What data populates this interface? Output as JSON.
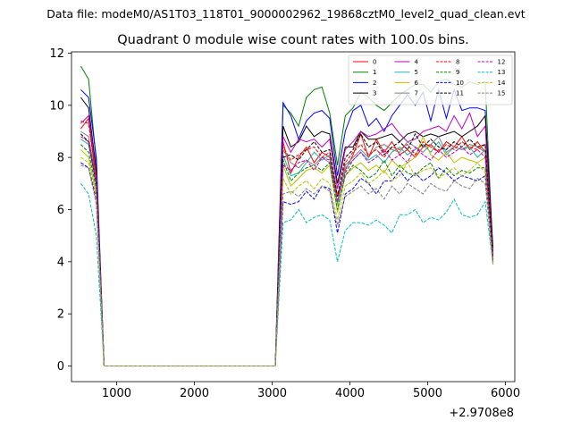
{
  "suptitle": "Data file: modeM0/AS1T03_118T01_9000002962_19868cztM0_level2_quad_clean.evt",
  "chart_data": {
    "type": "line",
    "title": "Quadrant 0 module wise count rates with 100.0s bins.",
    "xlabel": "",
    "ylabel": "",
    "x_offset_label": "+2.9708e8",
    "xlim": [
      420,
      6120
    ],
    "ylim": [
      -0.6,
      12.05
    ],
    "xticks": [
      1000,
      2000,
      3000,
      4000,
      5000,
      6000
    ],
    "xtick_labels": [
      "1000",
      "2000",
      "3000",
      "4000",
      "5000",
      "6000"
    ],
    "yticks": [
      0,
      2,
      4,
      6,
      8,
      10,
      12
    ],
    "ytick_labels": [
      "0",
      "2",
      "4",
      "6",
      "8",
      "10",
      "12"
    ],
    "grid": false,
    "legend_placement": "top-right",
    "x": [
      540,
      640,
      740,
      840,
      2940,
      3040,
      3140,
      3240,
      3340,
      3440,
      3540,
      3640,
      3740,
      3840,
      3940,
      4040,
      4140,
      4240,
      4340,
      4440,
      4540,
      4640,
      4740,
      4840,
      4940,
      5040,
      5140,
      5240,
      5340,
      5440,
      5540,
      5640,
      5740,
      5840
    ],
    "series": [
      {
        "name": "0",
        "color": "#ff0000",
        "dash": "solid",
        "values": [
          9.1,
          9.5,
          7.0,
          0,
          0,
          0,
          8.6,
          7.4,
          8.0,
          8.4,
          7.8,
          8.2,
          8.0,
          6.5,
          7.5,
          8.1,
          8.9,
          8.0,
          8.7,
          8.2,
          8.6,
          8.1,
          8.3,
          8.0,
          8.4,
          8.5,
          8.2,
          8.6,
          8.4,
          8.8,
          8.3,
          8.6,
          8.2,
          4.0
        ]
      },
      {
        "name": "1",
        "color": "#008000",
        "dash": "solid",
        "values": [
          11.5,
          11.0,
          7.8,
          0,
          0,
          0,
          10.0,
          9.7,
          9.2,
          10.3,
          10.6,
          10.7,
          9.7,
          7.7,
          9.6,
          9.9,
          10.5,
          10.3,
          10.0,
          9.8,
          10.1,
          10.4,
          10.6,
          10.8,
          10.8,
          10.5,
          10.9,
          11.0,
          10.8,
          10.7,
          10.9,
          10.8,
          10.9,
          4.2
        ]
      },
      {
        "name": "2",
        "color": "#0000ff",
        "dash": "solid",
        "values": [
          10.6,
          10.3,
          8.0,
          0,
          0,
          0,
          10.1,
          9.6,
          8.7,
          9.4,
          9.7,
          9.8,
          9.5,
          7.3,
          9.0,
          9.8,
          10.0,
          9.2,
          9.5,
          9.0,
          9.6,
          10.0,
          10.4,
          10.0,
          10.5,
          9.4,
          10.6,
          9.5,
          10.6,
          9.8,
          9.9,
          9.9,
          9.8,
          4.3
        ]
      },
      {
        "name": "3",
        "color": "#000000",
        "dash": "solid",
        "values": [
          10.3,
          9.9,
          7.5,
          0,
          0,
          0,
          9.2,
          8.4,
          8.6,
          9.2,
          8.8,
          9.0,
          8.9,
          7.0,
          8.4,
          8.4,
          9.0,
          8.7,
          8.7,
          8.8,
          8.9,
          8.6,
          8.9,
          9.0,
          8.8,
          8.9,
          8.8,
          8.9,
          9.0,
          8.8,
          9.0,
          9.2,
          9.6,
          4.5
        ]
      },
      {
        "name": "4",
        "color": "#bf00bf",
        "dash": "solid",
        "values": [
          9.3,
          9.6,
          7.3,
          0,
          0,
          0,
          8.8,
          8.2,
          8.7,
          8.6,
          8.7,
          8.4,
          8.7,
          6.8,
          8.3,
          8.6,
          9.0,
          8.8,
          8.9,
          9.1,
          9.3,
          8.9,
          8.6,
          8.7,
          9.0,
          9.1,
          9.2,
          9.0,
          9.6,
          9.1,
          9.7,
          8.8,
          9.2,
          4.1
        ]
      },
      {
        "name": "5",
        "color": "#20b2aa",
        "dash": "solid",
        "values": [
          8.7,
          8.5,
          6.9,
          0,
          0,
          0,
          8.1,
          7.3,
          7.4,
          7.8,
          8.2,
          7.9,
          8.1,
          6.2,
          7.6,
          7.9,
          8.2,
          7.9,
          8.1,
          7.8,
          8.2,
          8.4,
          8.1,
          8.3,
          8.5,
          8.2,
          8.6,
          8.1,
          8.4,
          8.3,
          8.4,
          8.0,
          8.3,
          4.0
        ]
      },
      {
        "name": "6",
        "color": "#bfbf00",
        "dash": "solid",
        "values": [
          8.3,
          8.0,
          6.6,
          0,
          0,
          0,
          7.7,
          6.9,
          7.2,
          7.5,
          7.6,
          7.4,
          7.7,
          5.9,
          7.3,
          7.6,
          7.8,
          7.5,
          7.7,
          7.4,
          7.9,
          7.6,
          7.8,
          8.0,
          8.8,
          8.1,
          7.9,
          8.2,
          7.8,
          8.0,
          7.9,
          7.8,
          8.0,
          3.9
        ]
      },
      {
        "name": "7",
        "color": "#808080",
        "dash": "solid",
        "values": [
          9.0,
          8.8,
          7.1,
          0,
          0,
          0,
          8.3,
          7.8,
          7.6,
          7.9,
          7.7,
          8.0,
          7.8,
          6.3,
          7.7,
          8.0,
          8.3,
          8.0,
          8.4,
          8.5,
          8.3,
          8.2,
          8.6,
          8.4,
          8.2,
          8.5,
          8.8,
          8.2,
          8.4,
          8.3,
          8.5,
          8.4,
          8.2,
          4.1
        ]
      },
      {
        "name": "8",
        "color": "#ff0000",
        "dash": "dashed",
        "values": [
          9.4,
          9.3,
          7.2,
          0,
          0,
          0,
          8.4,
          7.9,
          8.1,
          8.3,
          8.4,
          8.0,
          8.2,
          6.5,
          7.8,
          8.2,
          8.5,
          8.1,
          8.3,
          8.0,
          8.4,
          8.3,
          8.5,
          8.1,
          8.6,
          8.4,
          8.2,
          8.5,
          8.3,
          8.6,
          8.4,
          8.3,
          8.5,
          4.2
        ]
      },
      {
        "name": "9",
        "color": "#008000",
        "dash": "dashed",
        "values": [
          8.5,
          8.2,
          6.8,
          0,
          0,
          0,
          7.9,
          7.1,
          7.4,
          7.6,
          7.7,
          7.5,
          7.8,
          6.0,
          7.3,
          7.7,
          7.5,
          7.2,
          7.4,
          7.9,
          7.3,
          7.7,
          7.4,
          7.3,
          7.6,
          7.8,
          7.2,
          7.6,
          7.3,
          7.5,
          7.4,
          7.6,
          7.6,
          4.0
        ]
      },
      {
        "name": "10",
        "color": "#0000ff",
        "dash": "dashed",
        "values": [
          7.8,
          7.6,
          6.4,
          0,
          0,
          0,
          6.3,
          6.2,
          6.3,
          6.7,
          6.4,
          6.9,
          6.8,
          5.1,
          6.6,
          6.8,
          7.2,
          7.0,
          6.6,
          7.1,
          7.1,
          7.5,
          7.1,
          7.4,
          7.1,
          7.3,
          7.6,
          7.4,
          7.1,
          7.3,
          7.2,
          7.1,
          7.3,
          4.0
        ]
      },
      {
        "name": "11",
        "color": "#000000",
        "dash": "dashed",
        "values": [
          8.9,
          8.6,
          7.0,
          0,
          0,
          0,
          8.0,
          8.1,
          7.9,
          8.3,
          8.6,
          8.2,
          8.3,
          6.5,
          8.0,
          8.3,
          8.9,
          8.4,
          8.6,
          8.1,
          8.4,
          8.6,
          8.3,
          8.9,
          8.4,
          8.7,
          8.4,
          8.3,
          8.6,
          8.4,
          8.7,
          8.4,
          8.5,
          4.1
        ]
      },
      {
        "name": "12",
        "color": "#bf00bf",
        "dash": "dashed",
        "values": [
          8.8,
          8.6,
          7.0,
          0,
          0,
          0,
          7.7,
          7.5,
          7.8,
          7.9,
          7.5,
          8.0,
          7.9,
          6.3,
          7.4,
          7.9,
          8.2,
          7.8,
          8.0,
          8.3,
          7.9,
          8.1,
          7.8,
          8.4,
          8.1,
          7.9,
          8.3,
          8.0,
          8.2,
          8.4,
          8.1,
          8.3,
          8.0,
          4.1
        ]
      },
      {
        "name": "13",
        "color": "#00bfbf",
        "dash": "dashed",
        "values": [
          7.0,
          6.6,
          5.0,
          0,
          0,
          0,
          5.5,
          5.6,
          6.0,
          5.5,
          5.7,
          5.8,
          5.6,
          4.0,
          5.2,
          5.5,
          5.5,
          5.4,
          5.6,
          5.4,
          5.1,
          5.8,
          5.8,
          6.0,
          5.5,
          5.7,
          5.6,
          5.9,
          6.4,
          5.8,
          5.7,
          5.8,
          6.3,
          3.9
        ]
      },
      {
        "name": "14",
        "color": "#bfbf00",
        "dash": "dashed",
        "values": [
          8.0,
          7.8,
          6.5,
          0,
          0,
          0,
          7.2,
          6.6,
          6.9,
          7.1,
          6.8,
          7.2,
          7.0,
          5.6,
          6.9,
          7.1,
          7.4,
          7.0,
          7.2,
          7.5,
          7.1,
          7.3,
          7.8,
          7.3,
          7.5,
          7.6,
          7.2,
          7.4,
          7.6,
          7.3,
          7.5,
          7.8,
          7.4,
          3.9
        ]
      },
      {
        "name": "15",
        "color": "#808080",
        "dash": "dashed",
        "values": [
          7.7,
          7.6,
          6.2,
          0,
          0,
          0,
          6.6,
          6.7,
          6.5,
          6.8,
          6.6,
          6.9,
          6.7,
          5.4,
          6.5,
          6.7,
          6.9,
          6.6,
          6.8,
          6.4,
          6.9,
          6.6,
          7.0,
          6.8,
          6.6,
          7.0,
          6.8,
          6.7,
          7.1,
          6.9,
          6.8,
          7.2,
          7.0,
          3.9
        ]
      }
    ]
  }
}
